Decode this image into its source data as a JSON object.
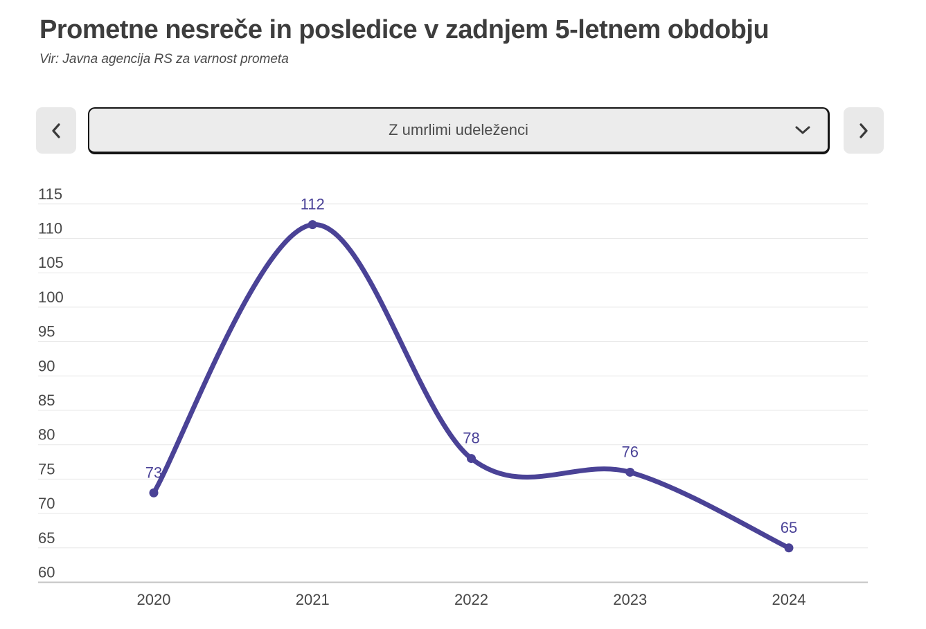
{
  "header": {
    "title": "Prometne nesreče in posledice v zadnjem 5-letnem obdobju",
    "subtitle": "Vir: Javna agencija RS za varnost prometa"
  },
  "controls": {
    "prev_icon": "chevron-left",
    "next_icon": "chevron-right",
    "selector_value": "Z umrlimi udeleženci",
    "selector_icon": "chevron-down"
  },
  "chart_data": {
    "type": "line",
    "title": "Prometne nesreče in posledice v zadnjem 5-letnem obdobju",
    "categories": [
      "2020",
      "2021",
      "2022",
      "2023",
      "2024"
    ],
    "series": [
      {
        "name": "Z umrlimi udeleženci",
        "values": [
          73,
          112,
          78,
          76,
          65
        ]
      }
    ],
    "ylim": [
      60,
      115
    ],
    "ytick_step": 5,
    "grid": true,
    "smooth": true,
    "show_point_labels": true,
    "legend_position": "none",
    "xlabel": "",
    "ylabel": "",
    "line_color": "#4a4296",
    "point_color": "#4a4296",
    "point_label_color": "#4b4398",
    "tick_color": "#474747",
    "grid_color": "#e7e7e7",
    "axis_color": "#c3c3c3"
  }
}
